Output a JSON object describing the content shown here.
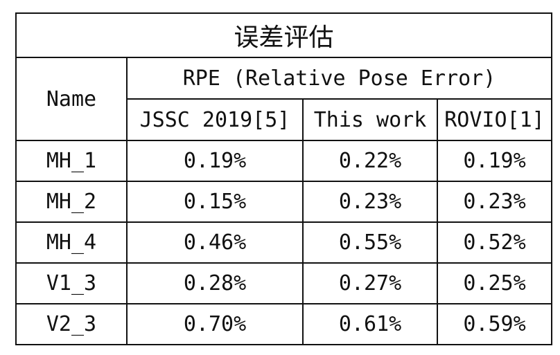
{
  "chart_data": {
    "type": "table",
    "title": "误差评估",
    "row_header": "Name",
    "group_header": "RPE (Relative Pose Error)",
    "columns": [
      "JSSC 2019[5]",
      "This work",
      "ROVIO[1]"
    ],
    "rows": [
      {
        "name": "MH_1",
        "values": [
          "0.19%",
          "0.22%",
          "0.19%"
        ]
      },
      {
        "name": "MH_2",
        "values": [
          "0.15%",
          "0.23%",
          "0.23%"
        ]
      },
      {
        "name": "MH_4",
        "values": [
          "0.46%",
          "0.55%",
          "0.52%"
        ]
      },
      {
        "name": "V1_3",
        "values": [
          "0.28%",
          "0.27%",
          "0.25%"
        ]
      },
      {
        "name": "V2_3",
        "values": [
          "0.70%",
          "0.61%",
          "0.59%"
        ]
      }
    ]
  }
}
